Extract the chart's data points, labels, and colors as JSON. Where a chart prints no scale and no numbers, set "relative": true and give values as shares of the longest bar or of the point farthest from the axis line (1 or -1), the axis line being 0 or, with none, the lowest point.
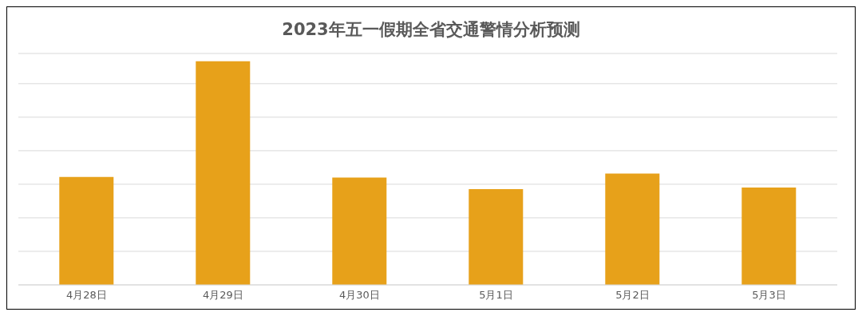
{
  "chart_data": {
    "type": "bar",
    "title": "2023年五一假期全省交通警情分析预测",
    "relative": true,
    "categories": [
      "4月28日",
      "4月29日",
      "4月30日",
      "5月1日",
      "5月2日",
      "5月3日"
    ],
    "values": [
      0.483,
      1,
      0.48,
      0.428,
      0.498,
      0.435
    ],
    "color": "#e7a11a",
    "grid": "y"
  }
}
